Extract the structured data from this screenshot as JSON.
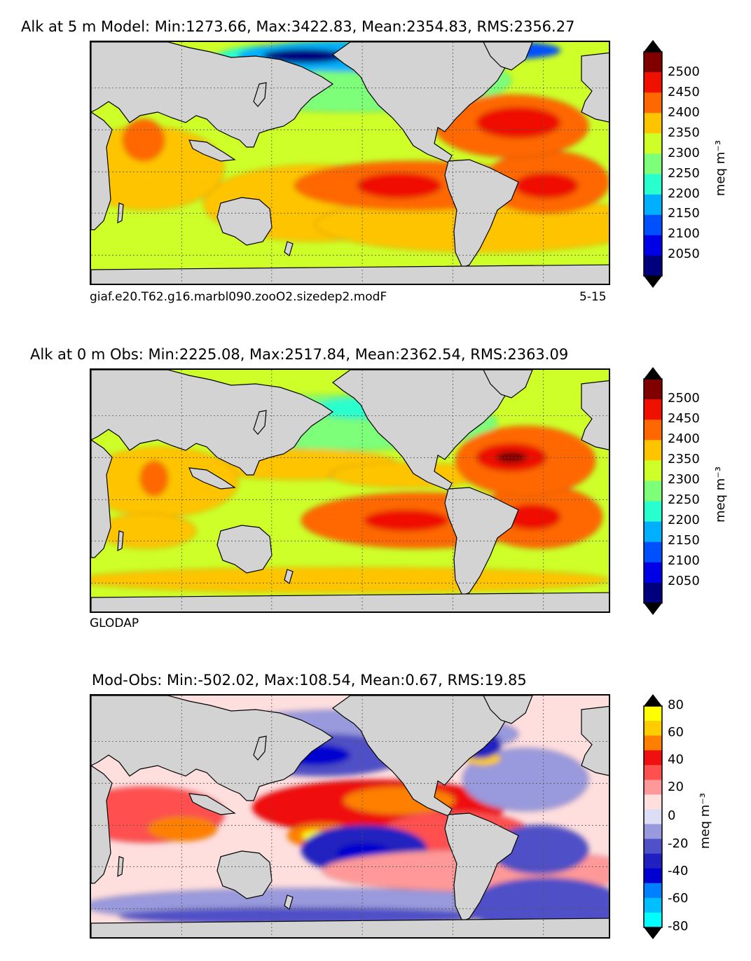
{
  "figure": {
    "colors": {
      "land": "#d3d3d3",
      "grid": "#555555",
      "abs_levels": [
        "#00007f",
        "#0000e6",
        "#0050ff",
        "#00b0ff",
        "#29ffce",
        "#7dff7a",
        "#ceff29",
        "#ffc400",
        "#ff6800",
        "#f01000",
        "#800000"
      ],
      "diff_levels": [
        "#00ffff",
        "#00bfff",
        "#0080ff",
        "#0000d0",
        "#2020c0",
        "#5050c8",
        "#9999dd",
        "#ddddf5",
        "#ffdede",
        "#ff9999",
        "#ff5050",
        "#f01010",
        "#ff8000",
        "#ffcc00",
        "#ffff00"
      ]
    }
  },
  "panels": [
    {
      "id": "model",
      "title": "Alk at 5 m Model: Min:1273.66, Max:3422.83, Mean:2354.83, RMS:2356.27",
      "caption_left": "giaf.e20.T62.g16.marbl090.zooO2.sizedep2.modF",
      "caption_right": "5-15",
      "colorbar": {
        "ticks": [
          "2500",
          "2450",
          "2400",
          "2350",
          "2300",
          "2250",
          "2200",
          "2150",
          "2100",
          "2050"
        ],
        "unit": "meq m⁻³"
      }
    },
    {
      "id": "obs",
      "title": "Alk at 0 m Obs: Min:2225.08, Max:2517.84, Mean:2362.54, RMS:2363.09",
      "caption_left": "GLODAP",
      "caption_right": "",
      "colorbar": {
        "ticks": [
          "2500",
          "2450",
          "2400",
          "2350",
          "2300",
          "2250",
          "2200",
          "2150",
          "2100",
          "2050"
        ],
        "unit": "meq m⁻³"
      }
    },
    {
      "id": "diff",
      "title": "Mod-Obs: Min:-502.02, Max:108.54, Mean:0.67, RMS:19.85",
      "caption_left": "",
      "caption_right": "",
      "colorbar": {
        "ticks": [
          "80",
          "60",
          "40",
          "20",
          "0",
          "-20",
          "-40",
          "-60",
          "-80"
        ],
        "unit": "meq m⁻³"
      }
    }
  ],
  "chart_data": [
    {
      "type": "heatmap",
      "title": "Alk at 5 m Model: Min:1273.66, Max:3422.83, Mean:2354.83, RMS:2356.27",
      "variable": "Alkalinity",
      "depth": "5 m",
      "source": "Model",
      "stats": {
        "min": 1273.66,
        "max": 3422.83,
        "mean": 2354.83,
        "rms": 2356.27
      },
      "colorbar": {
        "levels": [
          2000,
          2050,
          2100,
          2150,
          2200,
          2250,
          2300,
          2350,
          2400,
          2450,
          2500,
          2550
        ],
        "unit": "meq m^-3"
      },
      "caption": "giaf.e20.T62.g16.marbl090.zooO2.sizedep2.modF",
      "period": "5-15"
    },
    {
      "type": "heatmap",
      "title": "Alk at 0 m Obs: Min:2225.08, Max:2517.84, Mean:2362.54, RMS:2363.09",
      "variable": "Alkalinity",
      "depth": "0 m",
      "source": "GLODAP",
      "stats": {
        "min": 2225.08,
        "max": 2517.84,
        "mean": 2362.54,
        "rms": 2363.09
      },
      "colorbar": {
        "levels": [
          2000,
          2050,
          2100,
          2150,
          2200,
          2250,
          2300,
          2350,
          2400,
          2450,
          2500,
          2550
        ],
        "unit": "meq m^-3"
      }
    },
    {
      "type": "heatmap",
      "title": "Mod-Obs: Min:-502.02, Max:108.54, Mean:0.67, RMS:19.85",
      "variable": "Alkalinity difference",
      "stats": {
        "min": -502.02,
        "max": 108.54,
        "mean": 0.67,
        "rms": 19.85
      },
      "colorbar": {
        "levels": [
          -90,
          -80,
          -70,
          -60,
          -50,
          -40,
          -30,
          -20,
          -10,
          0,
          10,
          20,
          30,
          40,
          50,
          60,
          70,
          80,
          90
        ],
        "unit": "meq m^-3"
      }
    }
  ]
}
